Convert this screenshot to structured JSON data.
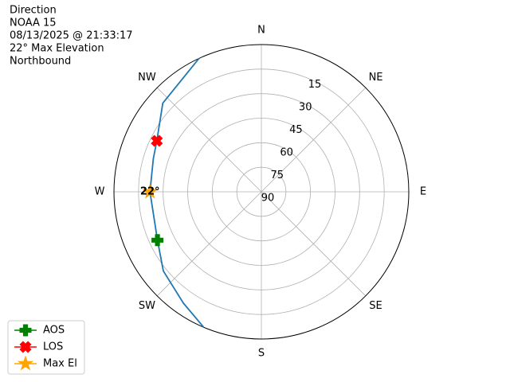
{
  "chart_data": {
    "type": "polar",
    "title_lines": [
      "Direction",
      "NOAA 15",
      "08/13/2025 @ 21:33:17",
      "22° Max Elevation",
      "Northbound"
    ],
    "xticks": [
      {
        "value": 0,
        "label": "N"
      },
      {
        "value": 45,
        "label": "NE"
      },
      {
        "value": 90,
        "label": "E"
      },
      {
        "value": 135,
        "label": "SE"
      },
      {
        "value": 180,
        "label": "S"
      },
      {
        "value": 225,
        "label": "SW"
      },
      {
        "value": 270,
        "label": "W"
      },
      {
        "value": 315,
        "label": "NW"
      }
    ],
    "ylim": [
      90,
      0
    ],
    "yticks": [
      90,
      75,
      60,
      45,
      30,
      15
    ],
    "grid": true,
    "legend_loc": "lower left",
    "series": [
      {
        "color": "#1f77b4",
        "marker": "none",
        "x": [
          203,
          215,
          231,
          245,
          270,
          287,
          296,
          312,
          335
        ],
        "values": [
          0,
          7,
          13,
          20,
          22,
          21,
          19,
          9,
          0
        ]
      },
      {
        "name": "AOS",
        "color": "#008000",
        "marker": "plus",
        "x": [
          245
        ],
        "values": [
          20
        ]
      },
      {
        "name": "LOS",
        "color": "#ff0000",
        "marker": "cross",
        "x": [
          296
        ],
        "values": [
          19
        ]
      },
      {
        "name": "Max El",
        "color": "#ffa500",
        "marker": "star",
        "x": [
          270
        ],
        "values": [
          22
        ]
      }
    ],
    "annotations": [
      {
        "text": "22°",
        "x": 270,
        "y": 22
      }
    ]
  }
}
